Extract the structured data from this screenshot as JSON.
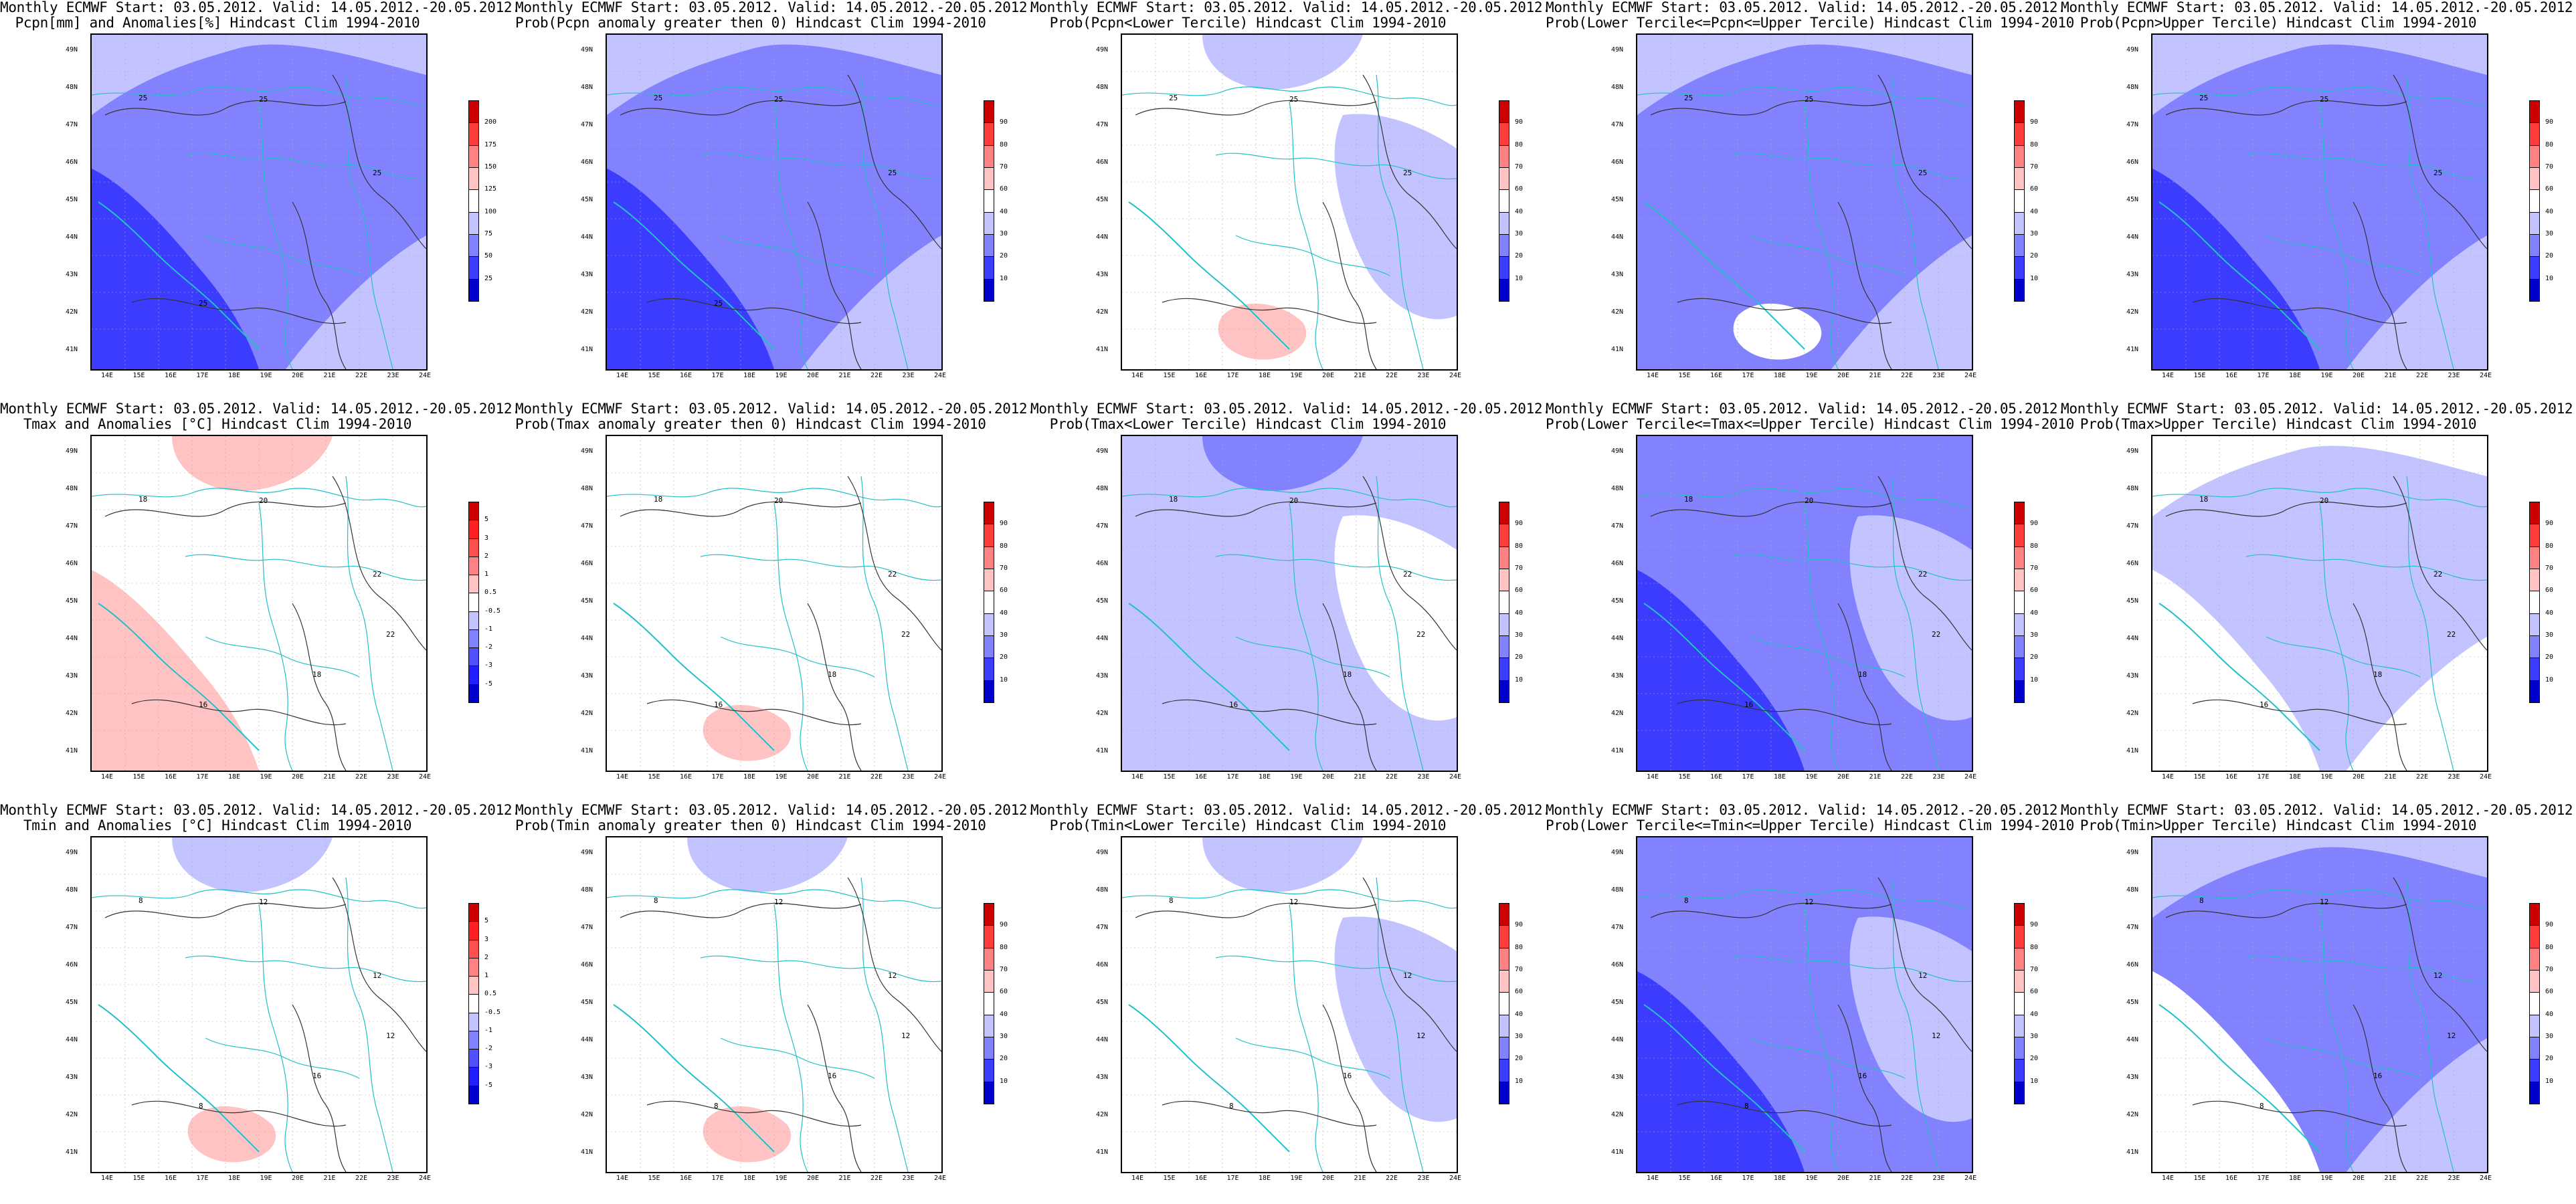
{
  "lat_labels": [
    "49N",
    "48N",
    "47N",
    "46N",
    "45N",
    "44N",
    "43N",
    "42N",
    "41N"
  ],
  "lon_labels": [
    "14E",
    "15E",
    "16E",
    "17E",
    "18E",
    "19E",
    "20E",
    "21E",
    "22E",
    "23E",
    "24E"
  ],
  "scales": {
    "pcpn": {
      "labels": [
        "25",
        "50",
        "75",
        "100",
        "125",
        "150",
        "175",
        "200"
      ],
      "colors": [
        "#0000cc",
        "#3c3cff",
        "#8282ff",
        "#c3c3ff",
        "#ffffff",
        "#ffc3c3",
        "#ff8282",
        "#ff3c3c",
        "#cc0000"
      ]
    },
    "prob": {
      "labels": [
        "10",
        "20",
        "30",
        "40",
        "60",
        "70",
        "80",
        "90"
      ],
      "colors": [
        "#0000cc",
        "#3c3cff",
        "#8282ff",
        "#c3c3ff",
        "#ffffff",
        "#ffc3c3",
        "#ff8282",
        "#ff3c3c",
        "#cc0000"
      ]
    },
    "anom": {
      "labels": [
        "-5",
        "-3",
        "-2",
        "-1",
        "-0.5",
        "0.5",
        "1",
        "2",
        "3",
        "5"
      ],
      "colors": [
        "#0000cc",
        "#2020ff",
        "#5050ff",
        "#8282ff",
        "#c3c3ff",
        "#ffffff",
        "#ffc3c3",
        "#ff8282",
        "#ff5050",
        "#ff2020",
        "#cc0000"
      ]
    }
  },
  "panels": [
    {
      "title1": "Monthly ECMWF Start: 03.05.2012. Valid: 14.05.2012.-20.05.2012.",
      "title2": "Pcpn[mm] and Anomalies[%] Hindcast Clim 1994-2010",
      "scale": "pcpn",
      "bg": "#c3c3ff",
      "blobs": [
        {
          "c": "#8282ff",
          "s": "big"
        },
        {
          "c": "#3c3cff",
          "s": "sw"
        }
      ],
      "contour_labels": [
        "25",
        "25",
        "25",
        "25"
      ]
    },
    {
      "title1": "Monthly ECMWF Start: 03.05.2012. Valid: 14.05.2012.-20.05.2012.",
      "title2": "Prob(Pcpn anomaly greater then 0) Hindcast Clim 1994-2010",
      "scale": "prob",
      "bg": "#c3c3ff",
      "blobs": [
        {
          "c": "#8282ff",
          "s": "big"
        },
        {
          "c": "#3c3cff",
          "s": "sw"
        }
      ],
      "contour_labels": [
        "25",
        "25",
        "25",
        "25"
      ]
    },
    {
      "title1": "Monthly ECMWF Start: 03.05.2012. Valid: 14.05.2012.-20.05.2012.",
      "title2": "Prob(Pcpn<Lower Tercile) Hindcast Clim 1994-2010",
      "scale": "prob",
      "bg": "#ffffff",
      "blobs": [
        {
          "c": "#c3c3ff",
          "s": "north"
        },
        {
          "c": "#c3c3ff",
          "s": "east"
        },
        {
          "c": "#ffc3c3",
          "s": "spot"
        }
      ],
      "contour_labels": [
        "25",
        "25",
        "25"
      ]
    },
    {
      "title1": "Monthly ECMWF Start: 03.05.2012. Valid: 14.05.2012.-20.05.2012.",
      "title2": "Prob(Lower Tercile<=Pcpn<=Upper Tercile) Hindcast Clim 1994-2010",
      "scale": "prob",
      "bg": "#c3c3ff",
      "blobs": [
        {
          "c": "#8282ff",
          "s": "big"
        },
        {
          "c": "#ffffff",
          "s": "spot"
        }
      ],
      "contour_labels": [
        "25",
        "25",
        "25"
      ]
    },
    {
      "title1": "Monthly ECMWF Start: 03.05.2012. Valid: 14.05.2012.-20.05.2012.",
      "title2": "Prob(Pcpn>Upper Tercile) Hindcast Clim 1994-2010",
      "scale": "prob",
      "bg": "#c3c3ff",
      "blobs": [
        {
          "c": "#8282ff",
          "s": "big"
        },
        {
          "c": "#3c3cff",
          "s": "sw"
        }
      ],
      "contour_labels": [
        "25",
        "25",
        "25"
      ]
    },
    {
      "title1": "Monthly ECMWF Start: 03.05.2012. Valid: 14.05.2012.-20.05.2012.",
      "title2": "Tmax and Anomalies [°C] Hindcast Clim 1994-2010",
      "scale": "anom",
      "bg": "#ffffff",
      "blobs": [
        {
          "c": "#ffc3c3",
          "s": "sw"
        },
        {
          "c": "#ffc3c3",
          "s": "north"
        }
      ],
      "contour_labels": [
        "18",
        "20",
        "22",
        "16",
        "18",
        "22"
      ]
    },
    {
      "title1": "Monthly ECMWF Start: 03.05.2012. Valid: 14.05.2012.-20.05.2012.",
      "title2": "Prob(Tmax anomaly greater then 0) Hindcast Clim 1994-2010",
      "scale": "prob",
      "bg": "#ffffff",
      "blobs": [
        {
          "c": "#ffc3c3",
          "s": "spot"
        }
      ],
      "contour_labels": [
        "18",
        "20",
        "22",
        "16",
        "18",
        "22"
      ]
    },
    {
      "title1": "Monthly ECMWF Start: 03.05.2012. Valid: 14.05.2012.-20.05.2012.",
      "title2": "Prob(Tmax<Lower Tercile) Hindcast Clim 1994-2010",
      "scale": "prob",
      "bg": "#c3c3ff",
      "blobs": [
        {
          "c": "#ffffff",
          "s": "east"
        },
        {
          "c": "#8282ff",
          "s": "north"
        }
      ],
      "contour_labels": [
        "18",
        "20",
        "22",
        "16",
        "18",
        "22"
      ]
    },
    {
      "title1": "Monthly ECMWF Start: 03.05.2012. Valid: 14.05.2012.-20.05.2012.",
      "title2": "Prob(Lower Tercile<=Tmax<=Upper Tercile) Hindcast Clim 1994-2010",
      "scale": "prob",
      "bg": "#8282ff",
      "blobs": [
        {
          "c": "#3c3cff",
          "s": "sw"
        },
        {
          "c": "#c3c3ff",
          "s": "east"
        }
      ],
      "contour_labels": [
        "18",
        "20",
        "22",
        "16",
        "18",
        "22"
      ]
    },
    {
      "title1": "Monthly ECMWF Start: 03.05.2012. Valid: 14.05.2012.-20.05.2012.",
      "title2": "Prob(Tmax>Upper Tercile) Hindcast Clim 1994-2010",
      "scale": "prob",
      "bg": "#ffffff",
      "blobs": [
        {
          "c": "#c3c3ff",
          "s": "big"
        },
        {
          "c": "#ffffff",
          "s": "sw"
        }
      ],
      "contour_labels": [
        "18",
        "20",
        "22",
        "16",
        "18",
        "22"
      ]
    },
    {
      "title1": "Monthly ECMWF Start: 03.05.2012. Valid: 14.05.2012.-20.05.2012.",
      "title2": "Tmin and Anomalies [°C] Hindcast Clim 1994-2010",
      "scale": "anom",
      "bg": "#ffffff",
      "blobs": [
        {
          "c": "#c3c3ff",
          "s": "north"
        },
        {
          "c": "#ffc3c3",
          "s": "spot"
        }
      ],
      "contour_labels": [
        "8",
        "12",
        "12",
        "8",
        "16",
        "12"
      ]
    },
    {
      "title1": "Monthly ECMWF Start: 03.05.2012. Valid: 14.05.2012.-20.05.2012.",
      "title2": "Prob(Tmin anomaly greater then 0) Hindcast Clim 1994-2010",
      "scale": "prob",
      "bg": "#ffffff",
      "blobs": [
        {
          "c": "#c3c3ff",
          "s": "north"
        },
        {
          "c": "#ffc3c3",
          "s": "spot"
        }
      ],
      "contour_labels": [
        "8",
        "12",
        "12",
        "8",
        "16",
        "12"
      ]
    },
    {
      "title1": "Monthly ECMWF Start: 03.05.2012. Valid: 14.05.2012.-20.05.2012.",
      "title2": "Prob(Tmin<Lower Tercile) Hindcast Clim 1994-2010",
      "scale": "prob",
      "bg": "#ffffff",
      "blobs": [
        {
          "c": "#c3c3ff",
          "s": "east"
        },
        {
          "c": "#c3c3ff",
          "s": "north"
        }
      ],
      "contour_labels": [
        "8",
        "12",
        "12",
        "8",
        "16",
        "12"
      ]
    },
    {
      "title1": "Monthly ECMWF Start: 03.05.2012. Valid: 14.05.2012.-20.05.2012.",
      "title2": "Prob(Lower Tercile<=Tmin<=Upper Tercile) Hindcast Clim 1994-2010",
      "scale": "prob",
      "bg": "#8282ff",
      "blobs": [
        {
          "c": "#c3c3ff",
          "s": "east"
        },
        {
          "c": "#3c3cff",
          "s": "sw"
        }
      ],
      "contour_labels": [
        "8",
        "12",
        "12",
        "8",
        "16",
        "12"
      ]
    },
    {
      "title1": "Monthly ECMWF Start: 03.05.2012. Valid: 14.05.2012.-20.05.2012.",
      "title2": "Prob(Tmin>Upper Tercile) Hindcast Clim 1994-2010",
      "scale": "prob",
      "bg": "#c3c3ff",
      "blobs": [
        {
          "c": "#8282ff",
          "s": "big"
        },
        {
          "c": "#ffffff",
          "s": "sw"
        }
      ],
      "contour_labels": [
        "8",
        "12",
        "12",
        "8",
        "16",
        "12"
      ]
    }
  ]
}
